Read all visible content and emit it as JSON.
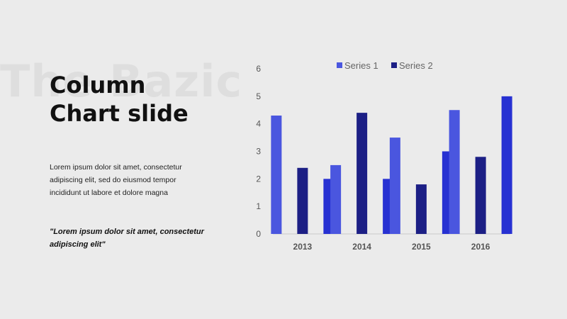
{
  "slide": {
    "watermark": "The Bazic",
    "title_line1": "Column",
    "title_line2": "Chart slide",
    "body": "Lorem ipsum dolor sit amet, consectetur adipiscing elit, sed do eiusmod tempor incididunt ut labore et dolore magna",
    "quote": "\"Lorem ipsum dolor sit amet, consectetur adipiscing elit\""
  },
  "chart_data": {
    "type": "bar",
    "categories": [
      "2013",
      "2014",
      "2015",
      "2016"
    ],
    "series": [
      {
        "name": "Series 1",
        "values": [
          4.3,
          2.5,
          3.5,
          4.5
        ],
        "color": "#4a56df"
      },
      {
        "name": "Series 2",
        "values": [
          2.4,
          4.4,
          1.8,
          2.8
        ],
        "color": "#1c1f85"
      },
      {
        "name": "",
        "values": [
          2.0,
          2.0,
          3.0,
          5.0
        ],
        "color": "#2731d2"
      }
    ],
    "ylim": [
      0,
      6
    ],
    "yticks": [
      "0",
      "1",
      "2",
      "3",
      "4",
      "5",
      "6"
    ],
    "legend": "top",
    "grid": false
  }
}
